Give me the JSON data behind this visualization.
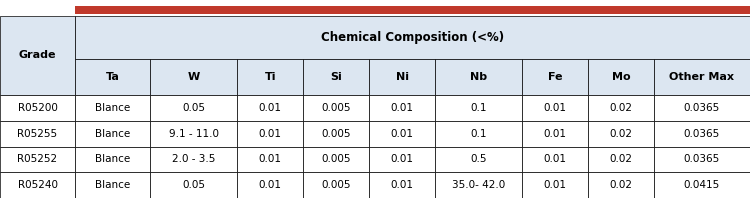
{
  "title_bar_color": "#c0392b",
  "header_bg": "#dce6f1",
  "table_bg": "#ffffff",
  "border_color": "#000000",
  "text_color": "#000000",
  "col_header": [
    "Ta",
    "W",
    "Ti",
    "Si",
    "Ni",
    "Nb",
    "Fe",
    "Mo",
    "Other Max"
  ],
  "span_header": "Chemical Composition (<%)",
  "grade_label": "Grade",
  "rows": [
    [
      "R05200",
      "Blance",
      "0.05",
      "0.01",
      "0.005",
      "0.01",
      "0.1",
      "0.01",
      "0.02",
      "0.0365"
    ],
    [
      "R05255",
      "Blance",
      "9.1 - 11.0",
      "0.01",
      "0.005",
      "0.01",
      "0.1",
      "0.01",
      "0.02",
      "0.0365"
    ],
    [
      "R05252",
      "Blance",
      "2.0 - 3.5",
      "0.01",
      "0.005",
      "0.01",
      "0.5",
      "0.01",
      "0.02",
      "0.0365"
    ],
    [
      "R05240",
      "Blance",
      "0.05",
      "0.01",
      "0.005",
      "0.01",
      "35.0- 42.0",
      "0.01",
      "0.02",
      "0.0415"
    ]
  ],
  "fig_width": 7.5,
  "fig_height": 1.98,
  "dpi": 100
}
